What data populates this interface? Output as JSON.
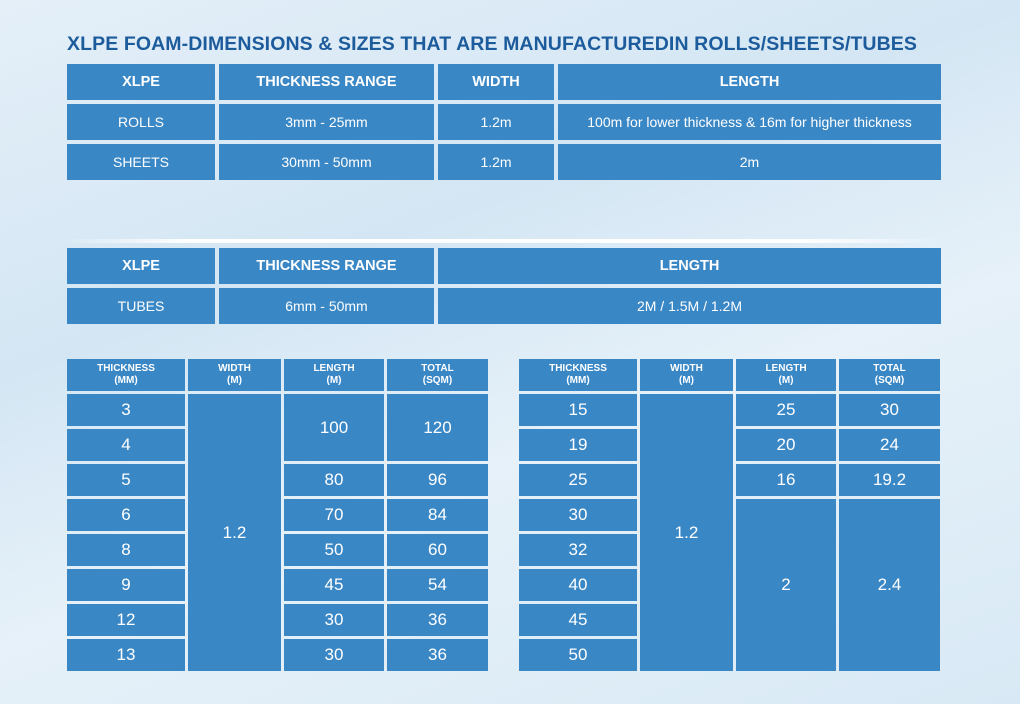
{
  "title": "XLPE FOAM-DIMENSIONS & SIZES THAT ARE MANUFACTUREDIN ROLLS/SHEETS/TUBES",
  "table1": {
    "headers": [
      "XLPE",
      "THICKNESS RANGE",
      "WIDTH",
      "LENGTH"
    ],
    "rows": [
      [
        "ROLLS",
        "3mm - 25mm",
        "1.2m",
        "100m for lower thickness & 16m for higher thickness"
      ],
      [
        "SHEETS",
        "30mm - 50mm",
        "1.2m",
        "2m"
      ]
    ]
  },
  "table2": {
    "headers": [
      "XLPE",
      "THICKNESS RANGE",
      "LENGTH"
    ],
    "rows": [
      [
        "TUBES",
        "6mm - 50mm",
        "2M / 1.5M / 1.2M"
      ]
    ]
  },
  "table3": {
    "headers": [
      {
        "l1": "THICKNESS",
        "l2": "(MM)"
      },
      {
        "l1": "WIDTH",
        "l2": "(M)"
      },
      {
        "l1": "LENGTH",
        "l2": "(M)"
      },
      {
        "l1": "TOTAL",
        "l2": "(SQM)"
      }
    ],
    "thickness": [
      "3",
      "4",
      "5",
      "6",
      "8",
      "9",
      "12",
      "13"
    ],
    "width": "1.2",
    "length": [
      "100",
      "80",
      "70",
      "50",
      "45",
      "30",
      "30"
    ],
    "total": [
      "120",
      "96",
      "84",
      "60",
      "54",
      "36",
      "36"
    ]
  },
  "table4": {
    "headers": [
      {
        "l1": "THICKNESS",
        "l2": "(MM)"
      },
      {
        "l1": "WIDTH",
        "l2": "(M)"
      },
      {
        "l1": "LENGTH",
        "l2": "(M)"
      },
      {
        "l1": "TOTAL",
        "l2": "(SQM)"
      }
    ],
    "thickness": [
      "15",
      "19",
      "25",
      "30",
      "32",
      "40",
      "45",
      "50"
    ],
    "width": "1.2",
    "length": [
      "25",
      "20",
      "16",
      "2"
    ],
    "total": [
      "30",
      "24",
      "19.2",
      "2.4"
    ]
  },
  "colors": {
    "cell": "#3a87c6",
    "title": "#1d5c9c",
    "text": "#ffffff"
  }
}
